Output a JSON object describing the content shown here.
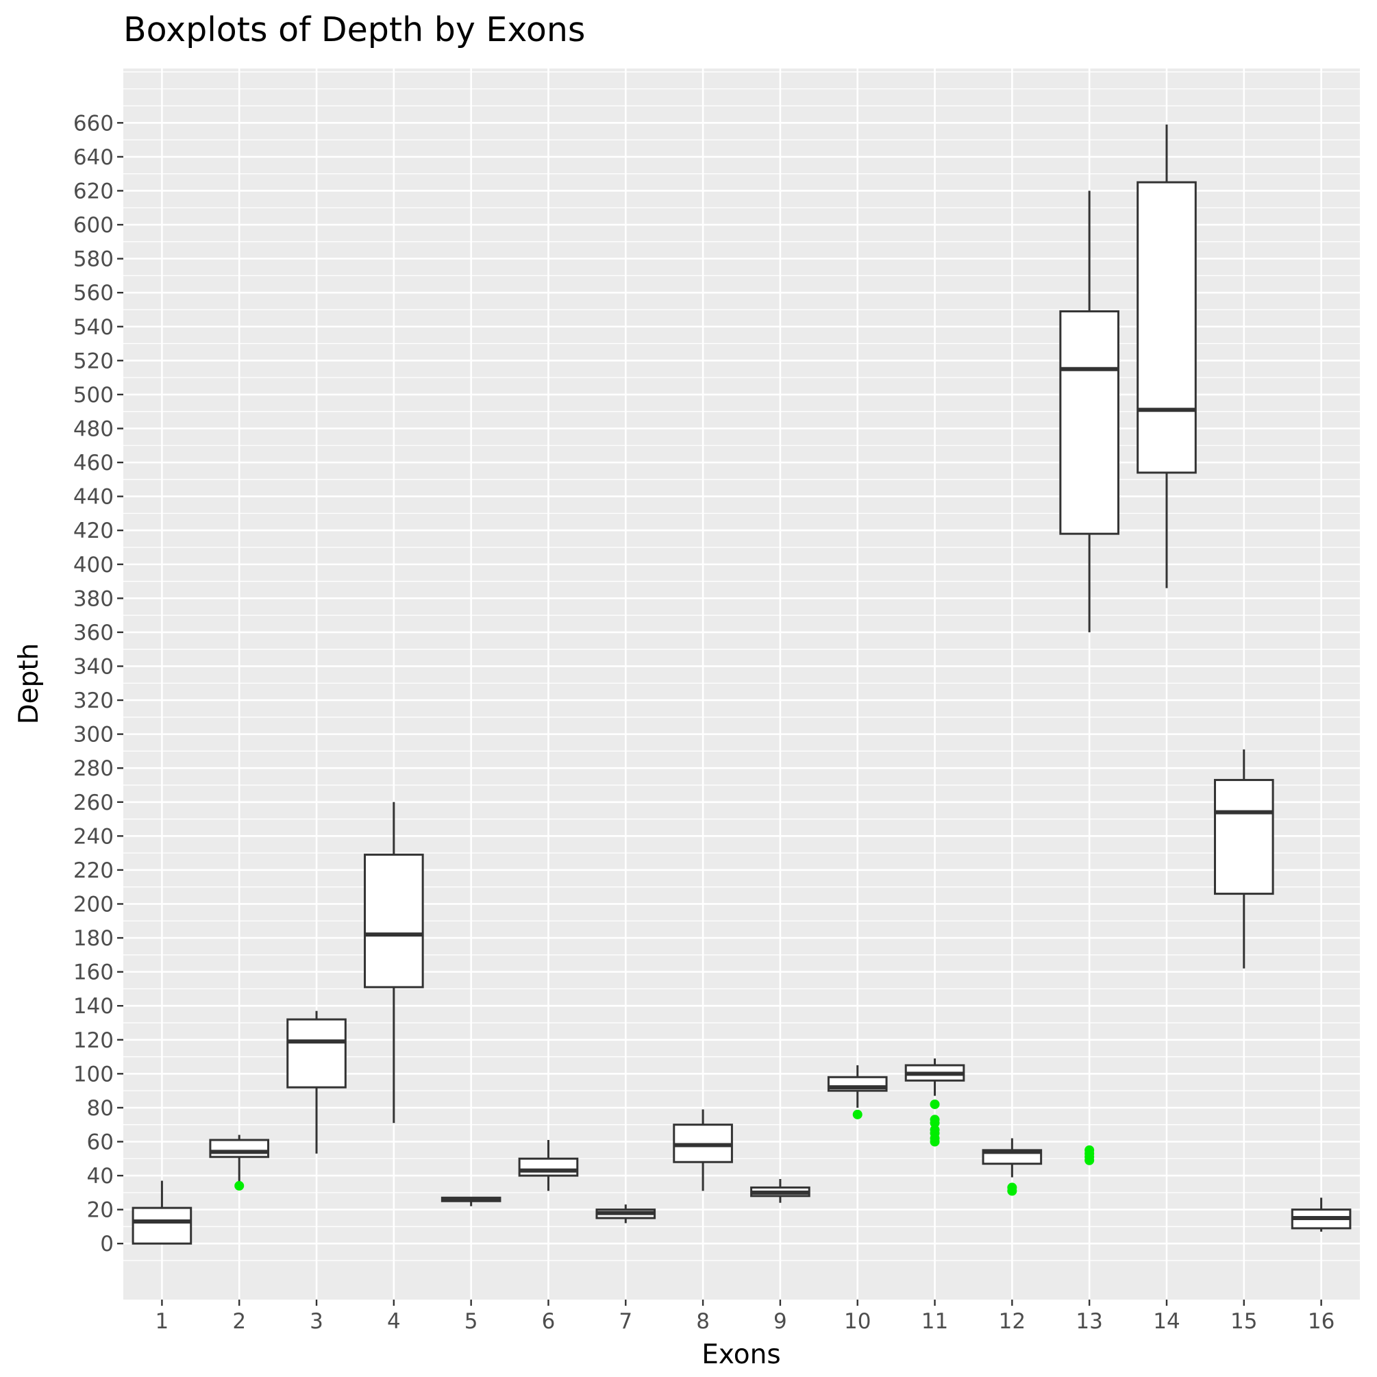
{
  "chart_data": {
    "type": "boxplot",
    "title": "Boxplots of Depth by Exons",
    "xlabel": "Exons",
    "ylabel": "Depth",
    "ylim": [
      -33,
      692
    ],
    "y_ticks": [
      "0",
      "20",
      "40",
      "60",
      "80",
      "100",
      "120",
      "140",
      "160",
      "180",
      "200",
      "220",
      "240",
      "260",
      "280",
      "300",
      "320",
      "340",
      "360",
      "380",
      "400",
      "420",
      "440",
      "460",
      "480",
      "500",
      "520",
      "540",
      "560",
      "580",
      "600",
      "620",
      "640",
      "660"
    ],
    "grid": true,
    "colors": {
      "panel": "#ebebeb",
      "grid": "#ffffff",
      "box_line": "#333333",
      "box_fill": "#ffffff",
      "outlier": "#00ee00"
    },
    "categories": [
      "1",
      "2",
      "3",
      "4",
      "5",
      "6",
      "7",
      "8",
      "9",
      "10",
      "11",
      "12",
      "13",
      "14",
      "15",
      "16"
    ],
    "boxes": [
      {
        "exon": "1",
        "whisker_low": 0,
        "q1": 0,
        "median": 13,
        "q3": 21,
        "whisker_high": 37,
        "outliers": []
      },
      {
        "exon": "2",
        "whisker_low": 35,
        "q1": 51,
        "median": 54,
        "q3": 61,
        "whisker_high": 64,
        "outliers": [
          34
        ]
      },
      {
        "exon": "3",
        "whisker_low": 53,
        "q1": 92,
        "median": 119,
        "q3": 132,
        "whisker_high": 137,
        "outliers": []
      },
      {
        "exon": "4",
        "whisker_low": 71,
        "q1": 151,
        "median": 182,
        "q3": 229,
        "whisker_high": 260,
        "outliers": []
      },
      {
        "exon": "5",
        "whisker_low": 22,
        "q1": 25,
        "median": 26,
        "q3": 27,
        "whisker_high": 27,
        "outliers": []
      },
      {
        "exon": "6",
        "whisker_low": 31,
        "q1": 40,
        "median": 43,
        "q3": 50,
        "whisker_high": 61,
        "outliers": []
      },
      {
        "exon": "7",
        "whisker_low": 12,
        "q1": 15,
        "median": 18,
        "q3": 20,
        "whisker_high": 23,
        "outliers": []
      },
      {
        "exon": "8",
        "whisker_low": 31,
        "q1": 48,
        "median": 58,
        "q3": 70,
        "whisker_high": 79,
        "outliers": []
      },
      {
        "exon": "9",
        "whisker_low": 24,
        "q1": 28,
        "median": 30,
        "q3": 33,
        "whisker_high": 38,
        "outliers": []
      },
      {
        "exon": "10",
        "whisker_low": 80,
        "q1": 90,
        "median": 92,
        "q3": 98,
        "whisker_high": 105,
        "outliers": [
          76
        ]
      },
      {
        "exon": "11",
        "whisker_low": 87,
        "q1": 96,
        "median": 100,
        "q3": 105,
        "whisker_high": 109,
        "outliers": [
          60,
          62,
          65,
          67,
          71,
          73,
          82
        ]
      },
      {
        "exon": "12",
        "whisker_low": 39,
        "q1": 47,
        "median": 54,
        "q3": 55,
        "whisker_high": 62,
        "outliers": [
          31,
          33
        ]
      },
      {
        "exon": "13",
        "whisker_low": 360,
        "q1": 418,
        "median": 515,
        "q3": 549,
        "whisker_high": 620,
        "outliers": [
          49,
          51,
          53,
          55
        ]
      },
      {
        "exon": "14",
        "whisker_low": 386,
        "q1": 454,
        "median": 491,
        "q3": 625,
        "whisker_high": 659,
        "outliers": []
      },
      {
        "exon": "15",
        "whisker_low": 162,
        "q1": 206,
        "median": 254,
        "q3": 273,
        "whisker_high": 291,
        "outliers": []
      },
      {
        "exon": "16",
        "whisker_low": 7,
        "q1": 9,
        "median": 15,
        "q3": 20,
        "whisker_high": 27,
        "outliers": []
      }
    ]
  }
}
